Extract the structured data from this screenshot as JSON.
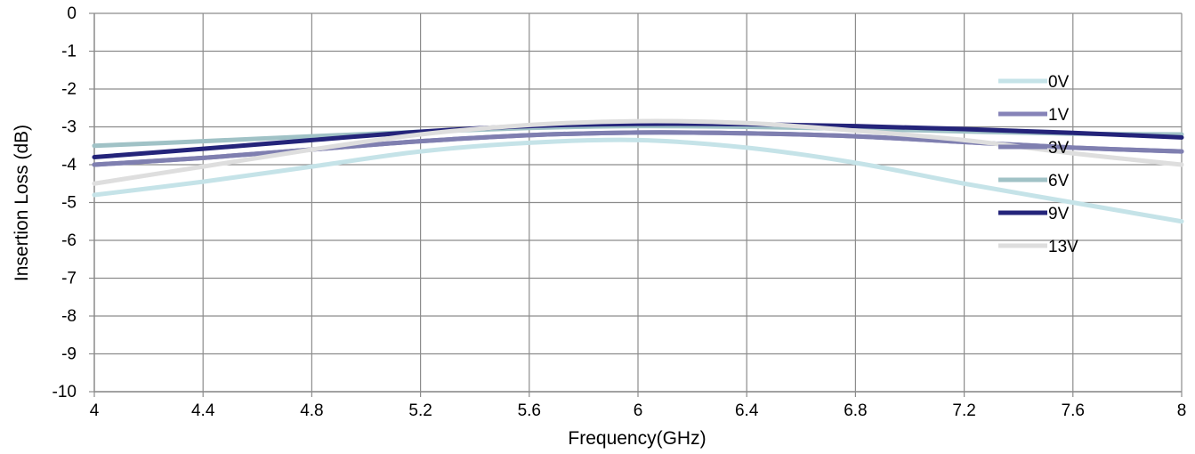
{
  "chart_data": {
    "type": "line",
    "title": "",
    "xlabel": "Frequency(GHz)",
    "ylabel": "Insertion  Loss  (dB)",
    "xlim": [
      4,
      8
    ],
    "ylim": [
      -10,
      0
    ],
    "x_ticks": [
      "4",
      "4.4",
      "4.8",
      "5.2",
      "5.6",
      "6",
      "6.4",
      "6.8",
      "7.2",
      "7.6",
      "8"
    ],
    "y_ticks": [
      "0",
      "-1",
      "-2",
      "-3",
      "-4",
      "-5",
      "-6",
      "-7",
      "-8",
      "-9",
      "-10"
    ],
    "grid": true,
    "legend_position": "right",
    "series": [
      {
        "name": "0V",
        "color": "#c5e3e8",
        "x": [
          4,
          4.4,
          4.8,
          5.2,
          5.6,
          6,
          6.4,
          6.8,
          7.2,
          7.6,
          8
        ],
        "y": [
          -4.8,
          -4.45,
          -4.05,
          -3.65,
          -3.42,
          -3.35,
          -3.55,
          -3.95,
          -4.5,
          -5.0,
          -5.5
        ]
      },
      {
        "name": "1V",
        "color": "#8683b8",
        "x": [
          4,
          4.4,
          4.8,
          5.2,
          5.6,
          6,
          6.4,
          6.8,
          7.2,
          7.6,
          8
        ],
        "y": [
          -4.0,
          -3.82,
          -3.6,
          -3.38,
          -3.22,
          -3.15,
          -3.17,
          -3.25,
          -3.4,
          -3.55,
          -3.65
        ]
      },
      {
        "name": "3V",
        "color": "#7f7fb0",
        "x": [
          4,
          4.4,
          4.8,
          5.2,
          5.6,
          6,
          6.4,
          6.8,
          7.2,
          7.6,
          8
        ],
        "y": [
          -4.0,
          -3.82,
          -3.6,
          -3.38,
          -3.22,
          -3.15,
          -3.17,
          -3.25,
          -3.4,
          -3.55,
          -3.65
        ]
      },
      {
        "name": "6V",
        "color": "#a0c2c6",
        "x": [
          4,
          4.4,
          4.8,
          5.2,
          5.6,
          6,
          6.4,
          6.8,
          7.2,
          7.6,
          8
        ],
        "y": [
          -3.5,
          -3.38,
          -3.25,
          -3.13,
          -3.03,
          -2.98,
          -3.0,
          -3.05,
          -3.12,
          -3.18,
          -3.2
        ]
      },
      {
        "name": "9V",
        "color": "#24247a",
        "x": [
          4,
          4.4,
          4.8,
          5.2,
          5.6,
          6,
          6.4,
          6.8,
          7.2,
          7.6,
          8
        ],
        "y": [
          -3.8,
          -3.58,
          -3.35,
          -3.13,
          -2.98,
          -2.92,
          -2.93,
          -2.98,
          -3.06,
          -3.16,
          -3.28
        ]
      },
      {
        "name": "13V",
        "color": "#dedede",
        "x": [
          4,
          4.4,
          4.8,
          5.2,
          5.6,
          6,
          6.4,
          6.8,
          7.2,
          7.6,
          8
        ],
        "y": [
          -4.5,
          -4.05,
          -3.6,
          -3.2,
          -2.95,
          -2.85,
          -2.9,
          -3.1,
          -3.35,
          -3.7,
          -4.0
        ]
      }
    ]
  }
}
